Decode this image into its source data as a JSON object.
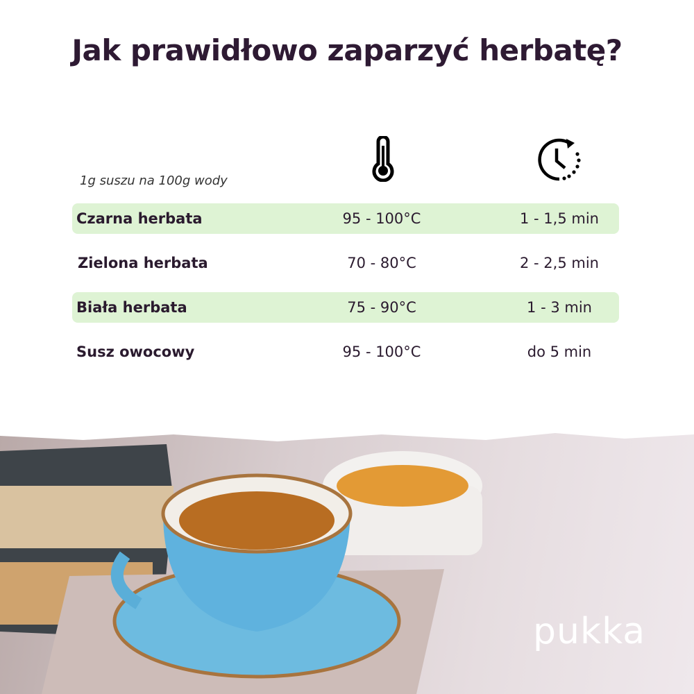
{
  "title": "Jak prawidłowo zaparzyć herbatę?",
  "note": "1g suszu na 100g wody",
  "icons": {
    "temperature": "thermometer-icon",
    "time": "clock-rotate-icon"
  },
  "colors": {
    "highlight": "#def3d4",
    "title": "#2e1a33"
  },
  "rows": [
    {
      "name": "Czarna herbata",
      "temp": "95 - 100°C",
      "time": "1 - 1,5 min"
    },
    {
      "name": "Zielona herbata",
      "temp": "70 - 80°C",
      "time": "2 - 2,5 min"
    },
    {
      "name": "Biała herbata",
      "temp": "75 - 90°C",
      "time": "1 - 3 min"
    },
    {
      "name": "Susz owocowy",
      "temp": "95 - 100°C",
      "time": "do 5 min"
    }
  ],
  "logo": "pukka"
}
